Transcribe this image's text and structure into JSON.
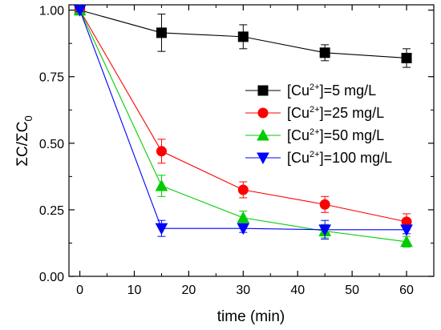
{
  "chart_data": {
    "type": "scatter",
    "title": "",
    "xlabel": "time (min)",
    "ylabel": "ΣC/ΣC0",
    "ylabel_parts": {
      "main": "ΣC/ΣC",
      "sub": "0"
    },
    "xlim": [
      -2,
      65
    ],
    "ylim": [
      0,
      1.02
    ],
    "xticks": [
      0,
      10,
      20,
      30,
      40,
      50,
      60
    ],
    "yticks": [
      0.0,
      0.25,
      0.5,
      0.75,
      1.0
    ],
    "ytick_labels": [
      "0.00",
      "0.25",
      "0.50",
      "0.75",
      "1.00"
    ],
    "grid": false,
    "legend_position": "right",
    "x": [
      0,
      15,
      30,
      45,
      60
    ],
    "series": [
      {
        "name": "[Cu2+]=5 mg/L",
        "label_parts": {
          "pre": "[Cu",
          "sup": "2+",
          "post": "]=5 mg/L"
        },
        "marker": "square",
        "color": "#000000",
        "values": [
          1.0,
          0.915,
          0.9,
          0.84,
          0.82
        ],
        "errors": [
          0.005,
          0.07,
          0.045,
          0.03,
          0.035
        ]
      },
      {
        "name": "[Cu2+]=25 mg/L",
        "label_parts": {
          "pre": "[Cu",
          "sup": "2+",
          "post": "]=25 mg/L"
        },
        "marker": "circle",
        "color": "#ff0000",
        "values": [
          1.0,
          0.47,
          0.325,
          0.27,
          0.205
        ],
        "errors": [
          0.005,
          0.045,
          0.03,
          0.03,
          0.03
        ]
      },
      {
        "name": "[Cu2+]=50 mg/L",
        "label_parts": {
          "pre": "[Cu",
          "sup": "2+",
          "post": "]=50 mg/L"
        },
        "marker": "triangle-up",
        "color": "#00cc00",
        "values": [
          1.0,
          0.34,
          0.22,
          0.17,
          0.13
        ],
        "errors": [
          0.005,
          0.04,
          0.025,
          0.025,
          0.02
        ]
      },
      {
        "name": "[Cu2+]=100 mg/L",
        "label_parts": {
          "pre": "[Cu",
          "sup": "2+",
          "post": "]=100 mg/L"
        },
        "marker": "triangle-down",
        "color": "#0000ff",
        "values": [
          1.0,
          0.18,
          0.18,
          0.175,
          0.175
        ],
        "errors": [
          0.005,
          0.03,
          0.015,
          0.035,
          0.015
        ]
      }
    ]
  }
}
